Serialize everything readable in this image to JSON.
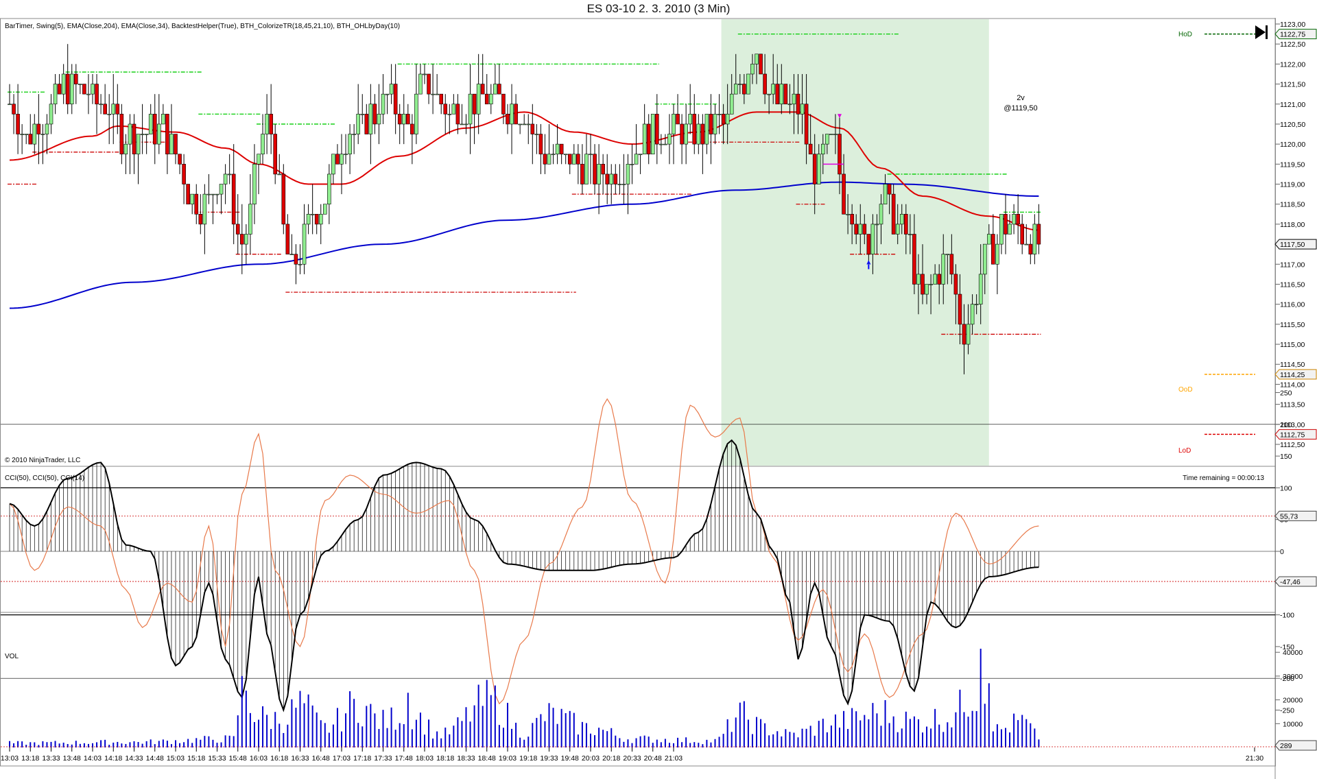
{
  "window": {
    "title": "ES 03-10  2. 3. 2010 (3 Min)"
  },
  "colors": {
    "up_candle": "#90ee90",
    "down_candle": "#dd0000",
    "ema34": "#dd0000",
    "ema204": "#0000cc",
    "session_shade": "#dcefdc",
    "swing_high": "#00cc00",
    "swing_low": "#cc0000",
    "cci50": "#000000",
    "cci14": "#e8794a",
    "volume": "#0000cc",
    "hod": "#006400",
    "ood": "#ffa500",
    "lod": "#dd0000"
  },
  "price_panel": {
    "indicator_label": "BarTimer, Swing(5), EMA(Close,204), EMA(Close,34), BacktestHelper(True), BTH_ColorizeTR(18,45,21,10), BTH_OHLbyDay(10)",
    "copyright": "© 2010 NinjaTrader, LLC",
    "time_remaining": "Time remaining = 00:00:13",
    "y_ticks": [
      "1123,00",
      "1122,50",
      "1122,00",
      "1121,50",
      "1121,00",
      "1120,50",
      "1120,00",
      "1119,50",
      "1119,00",
      "1118,50",
      "1118,00",
      "1117,50",
      "1117,00",
      "1116,50",
      "1116,00",
      "1115,50",
      "1115,00",
      "1114,50",
      "1114,00",
      "1113,50",
      "1113,00",
      "1112,50"
    ],
    "ylim": [
      1112.5,
      1123.0
    ],
    "price_markers": [
      {
        "label": "1122,75",
        "value": 1122.75,
        "color": "#006400"
      },
      {
        "label": "1117,50",
        "value": 1117.5,
        "color": "#000000"
      },
      {
        "label": "1114,25",
        "value": 1114.25,
        "color": "#cc8400"
      },
      {
        "label": "1112,75",
        "value": 1112.75,
        "color": "#cc0000"
      }
    ],
    "day_levels": [
      {
        "label": "HoD",
        "value": 1122.75,
        "color": "#006400"
      },
      {
        "label": "OoD",
        "value": 1114.25,
        "color": "#ffa500"
      },
      {
        "label": "LoD",
        "value": 1112.75,
        "color": "#dd0000"
      }
    ],
    "trade_annotation": {
      "line1": "2v",
      "line2": "@1119,50"
    }
  },
  "cci_panel": {
    "label": "CCI(50), CCI(50), CCI(14)",
    "y_ticks": [
      "250",
      "200",
      "150",
      "100",
      "50",
      "0",
      "-50",
      "-100",
      "-150",
      "-200",
      "-250"
    ],
    "ylim": [
      -280,
      270
    ],
    "markers": [
      {
        "label": "55,73",
        "value": 55.73
      },
      {
        "label": "-47,46",
        "value": -47.46
      }
    ]
  },
  "volume_panel": {
    "label": "VOL",
    "y_ticks": [
      "40000",
      "30000",
      "20000",
      "10000"
    ],
    "ylim": [
      0,
      45000
    ],
    "marker": {
      "label": "289",
      "value": 289
    }
  },
  "x_ticks": [
    "13:03",
    "13:18",
    "13:33",
    "13:48",
    "14:03",
    "14:18",
    "14:33",
    "14:48",
    "15:03",
    "15:18",
    "15:33",
    "15:48",
    "16:03",
    "16:18",
    "16:33",
    "16:48",
    "17:03",
    "17:18",
    "17:33",
    "17:48",
    "18:03",
    "18:18",
    "18:33",
    "18:48",
    "19:03",
    "19:18",
    "19:33",
    "19:48",
    "20:03",
    "20:18",
    "20:33",
    "20:48",
    "21:03",
    "21:30"
  ],
  "chart_data": {
    "type": "candlestick",
    "title": "ES 03-10  2. 3. 2010 (3 Min)",
    "bar_interval_minutes": 3,
    "x_start": "13:03",
    "session_shade_start_bar": 172,
    "ema34_knots": [
      [
        0,
        1119.6
      ],
      [
        20,
        1120.2
      ],
      [
        26,
        1120.45
      ],
      [
        40,
        1120.3
      ],
      [
        52,
        1119.9
      ],
      [
        60,
        1119.5
      ],
      [
        72,
        1119.0
      ],
      [
        80,
        1119.0
      ],
      [
        94,
        1119.7
      ],
      [
        110,
        1120.4
      ],
      [
        124,
        1120.8
      ],
      [
        136,
        1120.3
      ],
      [
        150,
        1120.0
      ],
      [
        166,
        1120.3
      ],
      [
        180,
        1120.8
      ],
      [
        190,
        1120.8
      ],
      [
        200,
        1120.4
      ],
      [
        210,
        1119.4
      ],
      [
        220,
        1118.7
      ],
      [
        236,
        1118.2
      ],
      [
        248,
        1117.85
      ]
    ],
    "ema204_knots": [
      [
        0,
        1115.9
      ],
      [
        30,
        1116.55
      ],
      [
        60,
        1117.0
      ],
      [
        90,
        1117.5
      ],
      [
        120,
        1118.1
      ],
      [
        150,
        1118.5
      ],
      [
        175,
        1118.85
      ],
      [
        200,
        1119.05
      ],
      [
        215,
        1119.0
      ],
      [
        248,
        1118.7
      ]
    ],
    "ohlc_knots": [
      [
        0,
        1121.0
      ],
      [
        4,
        1120.2
      ],
      [
        8,
        1120.7
      ],
      [
        14,
        1121.5
      ],
      [
        22,
        1121.1
      ],
      [
        28,
        1120.2
      ],
      [
        36,
        1120.4
      ],
      [
        46,
        1118.5
      ],
      [
        52,
        1119.2
      ],
      [
        56,
        1117.5
      ],
      [
        62,
        1120.5
      ],
      [
        68,
        1116.9
      ],
      [
        74,
        1118.3
      ],
      [
        82,
        1120.3
      ],
      [
        92,
        1121.1
      ],
      [
        96,
        1120.5
      ],
      [
        100,
        1121.5
      ],
      [
        106,
        1120.8
      ],
      [
        116,
        1121.2
      ],
      [
        122,
        1120.9
      ],
      [
        130,
        1119.7
      ],
      [
        136,
        1119.6
      ],
      [
        144,
        1119.2
      ],
      [
        156,
        1120.3
      ],
      [
        166,
        1120.3
      ],
      [
        172,
        1120.5
      ],
      [
        176,
        1121.5
      ],
      [
        180,
        1122.3
      ],
      [
        184,
        1121.1
      ],
      [
        190,
        1120.9
      ],
      [
        194,
        1119.3
      ],
      [
        198,
        1120.1
      ],
      [
        202,
        1118.5
      ],
      [
        206,
        1117.5
      ],
      [
        210,
        1118.6
      ],
      [
        216,
        1117.7
      ],
      [
        220,
        1116.2
      ],
      [
        226,
        1117.1
      ],
      [
        230,
        1115.4
      ],
      [
        236,
        1117.3
      ],
      [
        240,
        1118.0
      ],
      [
        248,
        1117.5
      ]
    ],
    "swing_highs": [
      [
        0,
        8,
        1121.3
      ],
      [
        14,
        46,
        1121.8
      ],
      [
        46,
        60,
        1120.75
      ],
      [
        60,
        78,
        1120.5
      ],
      [
        94,
        156,
        1122.0
      ],
      [
        156,
        170,
        1121.0
      ],
      [
        176,
        214,
        1122.75
      ],
      [
        212,
        240,
        1119.25
      ],
      [
        240,
        248,
        1118.3
      ]
    ],
    "swing_lows": [
      [
        0,
        6,
        1119.0
      ],
      [
        6,
        27,
        1119.8
      ],
      [
        27,
        37,
        1120.05
      ],
      [
        45,
        55,
        1118.3
      ],
      [
        55,
        65,
        1117.25
      ],
      [
        67,
        136,
        1116.3
      ],
      [
        136,
        164,
        1118.75
      ],
      [
        164,
        190,
        1120.05
      ],
      [
        190,
        196,
        1118.5
      ],
      [
        203,
        213,
        1117.25
      ],
      [
        225,
        248,
        1115.25
      ]
    ],
    "cci50_knots": [
      [
        0,
        75
      ],
      [
        6,
        40
      ],
      [
        14,
        115
      ],
      [
        22,
        140
      ],
      [
        28,
        10
      ],
      [
        34,
        0
      ],
      [
        40,
        -180
      ],
      [
        44,
        -150
      ],
      [
        48,
        -50
      ],
      [
        52,
        -170
      ],
      [
        56,
        -230
      ],
      [
        60,
        -40
      ],
      [
        62,
        -130
      ],
      [
        66,
        -250
      ],
      [
        70,
        -100
      ],
      [
        76,
        0
      ],
      [
        84,
        50
      ],
      [
        90,
        120
      ],
      [
        98,
        140
      ],
      [
        104,
        130
      ],
      [
        112,
        50
      ],
      [
        120,
        -20
      ],
      [
        130,
        -30
      ],
      [
        140,
        -30
      ],
      [
        150,
        -20
      ],
      [
        160,
        -10
      ],
      [
        166,
        30
      ],
      [
        174,
        175
      ],
      [
        180,
        60
      ],
      [
        184,
        0
      ],
      [
        188,
        -80
      ],
      [
        190,
        -170
      ],
      [
        194,
        -50
      ],
      [
        198,
        -150
      ],
      [
        202,
        -240
      ],
      [
        206,
        -100
      ],
      [
        212,
        -110
      ],
      [
        218,
        -220
      ],
      [
        222,
        -80
      ],
      [
        228,
        -120
      ],
      [
        236,
        -40
      ],
      [
        248,
        -25
      ]
    ],
    "cci14_knots": [
      [
        0,
        75
      ],
      [
        6,
        -30
      ],
      [
        14,
        70
      ],
      [
        22,
        40
      ],
      [
        28,
        -60
      ],
      [
        32,
        -120
      ],
      [
        38,
        -50
      ],
      [
        44,
        -80
      ],
      [
        48,
        40
      ],
      [
        52,
        -150
      ],
      [
        56,
        90
      ],
      [
        60,
        185
      ],
      [
        64,
        -30
      ],
      [
        70,
        -150
      ],
      [
        76,
        80
      ],
      [
        82,
        120
      ],
      [
        90,
        90
      ],
      [
        98,
        60
      ],
      [
        106,
        80
      ],
      [
        112,
        -30
      ],
      [
        118,
        -240
      ],
      [
        124,
        -140
      ],
      [
        130,
        -20
      ],
      [
        138,
        70
      ],
      [
        144,
        240
      ],
      [
        150,
        80
      ],
      [
        158,
        -50
      ],
      [
        164,
        230
      ],
      [
        170,
        180
      ],
      [
        176,
        210
      ],
      [
        180,
        60
      ],
      [
        184,
        -10
      ],
      [
        190,
        -140
      ],
      [
        196,
        -60
      ],
      [
        202,
        -190
      ],
      [
        206,
        -130
      ],
      [
        212,
        -230
      ],
      [
        220,
        -130
      ],
      [
        228,
        60
      ],
      [
        236,
        -20
      ],
      [
        248,
        40
      ]
    ],
    "volume_knots": [
      [
        0,
        2000
      ],
      [
        30,
        2500
      ],
      [
        54,
        4000
      ],
      [
        56,
        30000
      ],
      [
        60,
        14000
      ],
      [
        66,
        13000
      ],
      [
        70,
        20000
      ],
      [
        76,
        9000
      ],
      [
        84,
        20000
      ],
      [
        90,
        12000
      ],
      [
        96,
        17000
      ],
      [
        104,
        6000
      ],
      [
        116,
        22000
      ],
      [
        124,
        7000
      ],
      [
        130,
        15000
      ],
      [
        140,
        9000
      ],
      [
        150,
        4000
      ],
      [
        170,
        3000
      ],
      [
        176,
        15000
      ],
      [
        182,
        9000
      ],
      [
        188,
        6000
      ],
      [
        200,
        12000
      ],
      [
        210,
        16000
      ],
      [
        218,
        12000
      ],
      [
        226,
        14000
      ],
      [
        234,
        28000
      ],
      [
        238,
        8000
      ],
      [
        244,
        12000
      ],
      [
        248,
        5000
      ]
    ]
  }
}
